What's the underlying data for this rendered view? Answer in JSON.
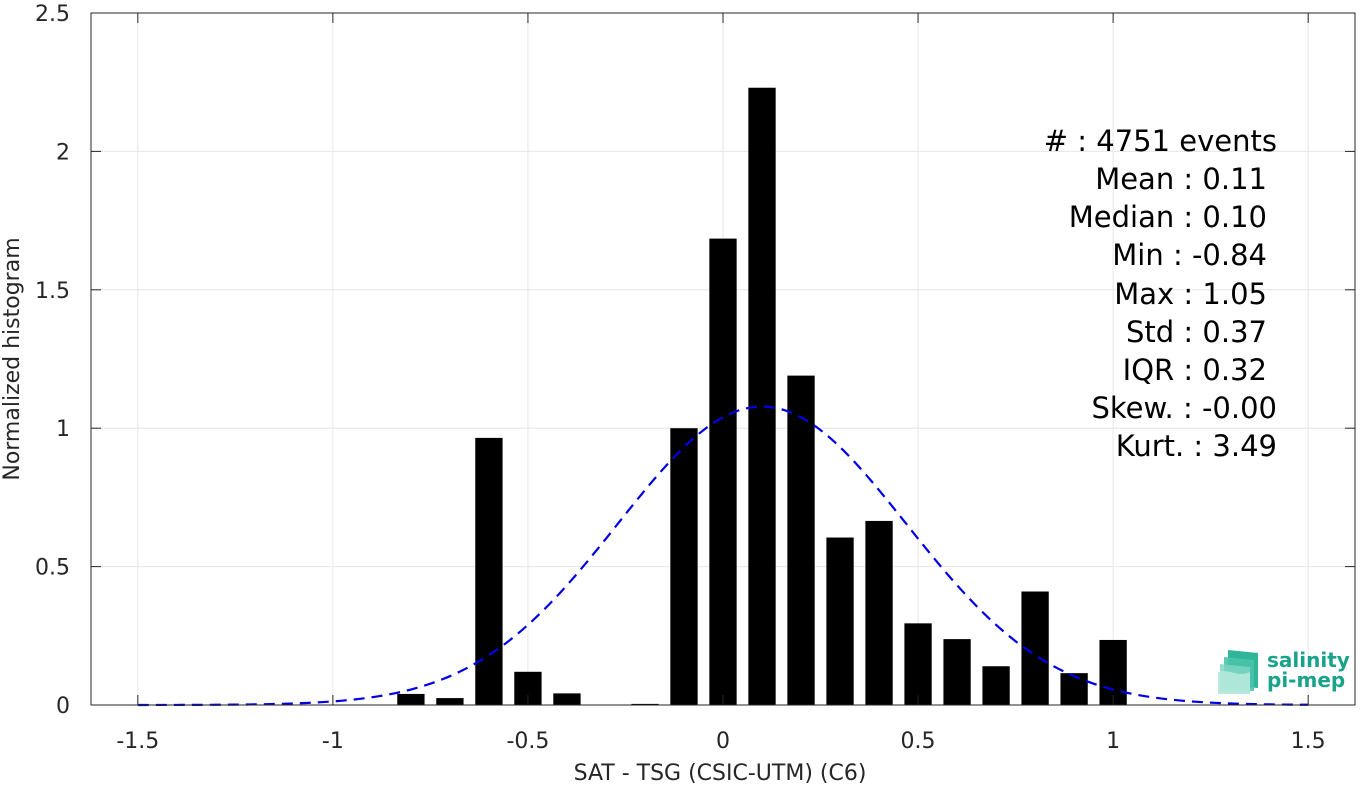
{
  "chart_data": {
    "type": "bar",
    "xlabel": "SAT - TSG (CSIC-UTM) (C6)",
    "ylabel": "Normalized histogram",
    "xlim": [
      -1.62,
      1.62
    ],
    "ylim": [
      0,
      2.5
    ],
    "grid": true,
    "xticks": [
      -1.5,
      -1,
      -0.5,
      0,
      0.5,
      1,
      1.5
    ],
    "xtick_labels": [
      "-1.5",
      "-1",
      "-0.5",
      "0",
      "0.5",
      "1",
      "1.5"
    ],
    "yticks": [
      0,
      0.5,
      1,
      1.5,
      2,
      2.5
    ],
    "ytick_labels": [
      "0",
      "0.5",
      "1",
      "1.5",
      "2",
      "2.5"
    ],
    "bar_width": 0.07,
    "bars": [
      {
        "x": -0.8,
        "y": 0.04
      },
      {
        "x": -0.7,
        "y": 0.025
      },
      {
        "x": -0.6,
        "y": 0.965
      },
      {
        "x": -0.5,
        "y": 0.12
      },
      {
        "x": -0.4,
        "y": 0.042
      },
      {
        "x": -0.2,
        "y": 0.004
      },
      {
        "x": -0.1,
        "y": 1.0
      },
      {
        "x": 0.0,
        "y": 1.685
      },
      {
        "x": 0.1,
        "y": 2.23
      },
      {
        "x": 0.2,
        "y": 1.19
      },
      {
        "x": 0.3,
        "y": 0.605
      },
      {
        "x": 0.4,
        "y": 0.665
      },
      {
        "x": 0.5,
        "y": 0.295
      },
      {
        "x": 0.6,
        "y": 0.238
      },
      {
        "x": 0.7,
        "y": 0.14
      },
      {
        "x": 0.8,
        "y": 0.41
      },
      {
        "x": 0.9,
        "y": 0.115
      },
      {
        "x": 1.0,
        "y": 0.235
      }
    ],
    "fit_curve": {
      "style": "dashed",
      "color": "#0000e6",
      "mean": 0.1,
      "std": 0.37,
      "x_range": [
        -1.5,
        1.5
      ]
    },
    "bar_color": "#000000",
    "stats": [
      {
        "label": "#  :",
        "value": "4751 events"
      },
      {
        "label": "Mean :",
        "value": "0.11"
      },
      {
        "label": "Median :",
        "value": "0.10"
      },
      {
        "label": "Min :",
        "value": "-0.84"
      },
      {
        "label": "Max :",
        "value": "1.05"
      },
      {
        "label": "Std :",
        "value": "0.37"
      },
      {
        "label": "IQR :",
        "value": "0.32"
      },
      {
        "label": "Skew. :",
        "value": "-0.00"
      },
      {
        "label": "Kurt. :",
        "value": "3.49"
      }
    ]
  },
  "logo": {
    "line1": "salinity",
    "line2": "pi-mep",
    "color": "#1aa38a"
  }
}
